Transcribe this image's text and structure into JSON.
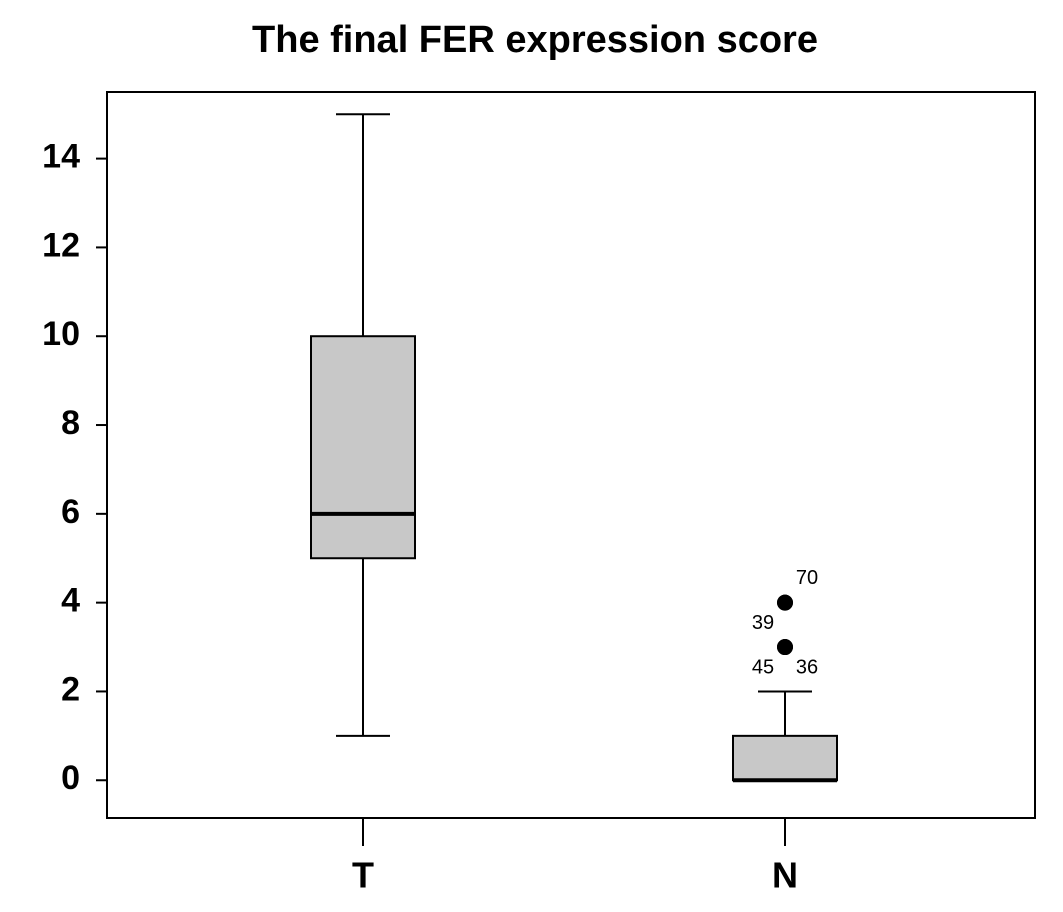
{
  "chart_data": {
    "type": "box",
    "title": "The final FER expression score",
    "categories": [
      "T",
      "N"
    ],
    "boxes": [
      {
        "min": 1,
        "q1": 5,
        "median": 6,
        "q3": 10,
        "max": 15,
        "outliers": []
      },
      {
        "min": 0,
        "q1": 0,
        "median": 0,
        "q3": 1,
        "max": 2,
        "outliers": [
          {
            "value": 4,
            "label": "70"
          },
          {
            "value": 4,
            "label": "39"
          },
          {
            "value": 3,
            "label": "36"
          },
          {
            "value": 3,
            "label": "45"
          }
        ]
      }
    ],
    "color": "#c8c8c8",
    "ylim": [
      -0.85,
      15.5
    ],
    "yticks": [
      0,
      2,
      4,
      6,
      8,
      10,
      12,
      14
    ]
  }
}
